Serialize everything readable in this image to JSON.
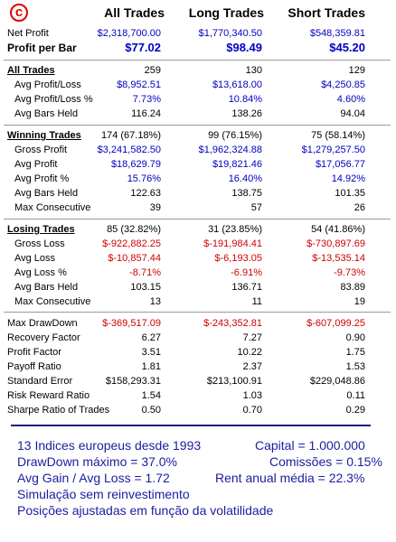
{
  "logo": {
    "letter": "c"
  },
  "header": {
    "col1": "All Trades",
    "col2": "Long Trades",
    "col3": "Short Trades"
  },
  "summary": [
    {
      "label": "Net Profit",
      "v": [
        "$2,318,700.00",
        "$1,770,340.50",
        "$548,359.81"
      ]
    },
    {
      "label": "Profit per Bar",
      "v": [
        "$77.02",
        "$98.49",
        "$45.20"
      ]
    }
  ],
  "all_trades": {
    "title": "All Trades",
    "counts": [
      "259",
      "130",
      "129"
    ],
    "rows": [
      {
        "label": "Avg Profit/Loss",
        "v": [
          "$8,952.51",
          "$13,618.00",
          "$4,250.85"
        ]
      },
      {
        "label": "Avg Profit/Loss %",
        "v": [
          "7.73%",
          "10.84%",
          "4.60%"
        ]
      },
      {
        "label": "Avg Bars Held",
        "v": [
          "116.24",
          "138.26",
          "94.04"
        ]
      }
    ]
  },
  "winning_trades": {
    "title": "Winning Trades",
    "counts": [
      "174 (67.18%)",
      "99 (76.15%)",
      "75 (58.14%)"
    ],
    "rows": [
      {
        "label": "Gross Profit",
        "v": [
          "$3,241,582.50",
          "$1,962,324.88",
          "$1,279,257.50"
        ]
      },
      {
        "label": "Avg Profit",
        "v": [
          "$18,629.79",
          "$19,821.46",
          "$17,056.77"
        ]
      },
      {
        "label": "Avg Profit %",
        "v": [
          "15.76%",
          "16.40%",
          "14.92%"
        ]
      },
      {
        "label": "Avg Bars Held",
        "v": [
          "122.63",
          "138.75",
          "101.35"
        ]
      },
      {
        "label": "Max Consecutive",
        "v": [
          "39",
          "57",
          "26"
        ]
      }
    ]
  },
  "losing_trades": {
    "title": "Losing Trades",
    "counts": [
      "85 (32.82%)",
      "31 (23.85%)",
      "54 (41.86%)"
    ],
    "rows": [
      {
        "label": "Gross Loss",
        "v": [
          "$-922,882.25",
          "$-191,984.41",
          "$-730,897.69"
        ]
      },
      {
        "label": "Avg Loss",
        "v": [
          "$-10,857.44",
          "$-6,193.05",
          "$-13,535.14"
        ]
      },
      {
        "label": "Avg Loss %",
        "v": [
          "-8.71%",
          "-6.91%",
          "-9.73%"
        ]
      },
      {
        "label": "Avg Bars Held",
        "v": [
          "103.15",
          "136.71",
          "83.89"
        ]
      },
      {
        "label": "Max Consecutive",
        "v": [
          "13",
          "11",
          "19"
        ]
      }
    ]
  },
  "risk": [
    {
      "label": "Max DrawDown",
      "v": [
        "$-369,517.09",
        "$-243,352.81",
        "$-607,099.25"
      ]
    },
    {
      "label": "Recovery Factor",
      "v": [
        "6.27",
        "7.27",
        "0.90"
      ]
    },
    {
      "label": "Profit Factor",
      "v": [
        "3.51",
        "10.22",
        "1.75"
      ]
    },
    {
      "label": "Payoff Ratio",
      "v": [
        "1.81",
        "2.37",
        "1.53"
      ]
    },
    {
      "label": "Standard Error",
      "v": [
        "$158,293.31",
        "$213,100.91",
        "$229,048.86"
      ]
    },
    {
      "label": "Risk Reward Ratio",
      "v": [
        "1.54",
        "1.03",
        "0.11"
      ]
    },
    {
      "label": "Sharpe Ratio of Trades",
      "v": [
        "0.50",
        "0.70",
        "0.29"
      ]
    }
  ],
  "notes": {
    "l1a": "13 Indices europeus desde 1993",
    "l1b": "Capital = 1.000.000",
    "l2a": "DrawDown máximo = 37.0%",
    "l2b": "Comissões = 0.15%",
    "l3a": "Avg Gain / Avg Loss = 1.72",
    "l3b": "Rent anual média = 22.3%",
    "l4": "Simulação sem reinvestimento",
    "l5": "Posições ajustadas em função da volatilidade"
  },
  "colors": {
    "blue": "#0000c0",
    "red": "#d00000",
    "notes": "#1c1ca0"
  }
}
